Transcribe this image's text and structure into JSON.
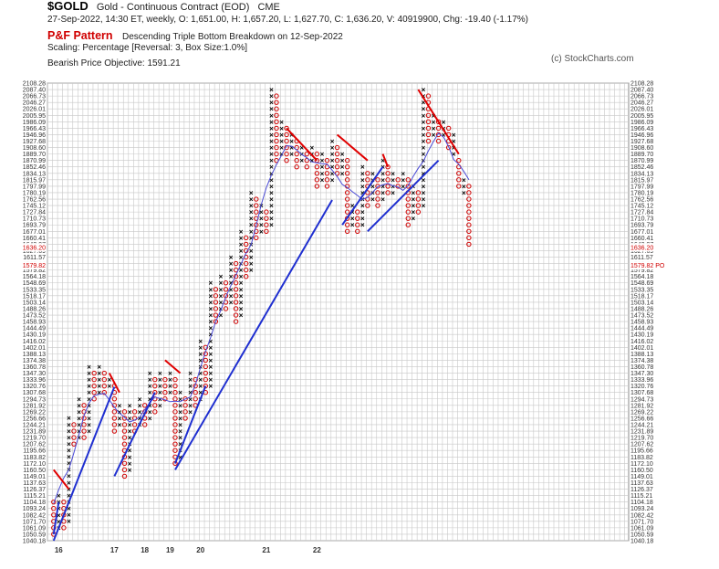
{
  "header": {
    "symbol": "$GOLD",
    "name": "Gold - Continuous Contract (EOD)",
    "exchange": "CME",
    "quote_line": "27-Sep-2022, 14:30 ET, weekly, O: 1,651.00, H: 1,657.20, L: 1,627.70, C: 1,636.20, V: 40919900, Chg: -19.40 (-1.17%)",
    "pattern_label": "P&F Pattern",
    "pattern_desc": "Descending Triple Bottom Breakdown on 12-Sep-2022",
    "scaling": "Scaling: Percentage [Reversal: 3, Box Size:1.0%]",
    "objective": "Bearish Price Objective: 1591.21",
    "credit": "(c) StockCharts.com"
  },
  "chart_data": {
    "type": "point-and-figure",
    "box_size_pct": 1.0,
    "reversal": 3,
    "y_axis": {
      "min": 1040.18,
      "max": 2108.28,
      "scale": "log"
    },
    "y_tick_labels": [
      "2108.28",
      "2087.40",
      "2066.73",
      "2046.27",
      "2026.01",
      "2005.95",
      "1986.09",
      "1966.43",
      "1946.96",
      "1927.68",
      "1908.60",
      "1889.70",
      "1870.99",
      "1852.46",
      "1834.13",
      "1815.97",
      "1797.99",
      "1780.19",
      "1762.56",
      "1745.12",
      "1727.84",
      "1710.73",
      "1693.79",
      "1677.01",
      "1660.41",
      "1643.97",
      "1627.69",
      "1611.57",
      "1595.62",
      "1579.82",
      "1564.18",
      "1548.69",
      "1533.35",
      "1518.17",
      "1503.14",
      "1488.26",
      "1473.52",
      "1458.93",
      "1444.49",
      "1430.19",
      "1416.02",
      "1402.01",
      "1388.13",
      "1374.38",
      "1360.78",
      "1347.30",
      "1333.96",
      "1320.76",
      "1307.68",
      "1294.73",
      "1281.92",
      "1269.22",
      "1256.66",
      "1244.21",
      "1231.89",
      "1219.70",
      "1207.62",
      "1195.66",
      "1183.82",
      "1172.10",
      "1160.50",
      "1149.01",
      "1137.63",
      "1126.37",
      "1115.21",
      "1104.18",
      "1093.24",
      "1082.42",
      "1071.70",
      "1061.09",
      "1050.59",
      "1040.18"
    ],
    "current_price": {
      "label": "1636.20",
      "value": 1636.2,
      "color": "#d00000"
    },
    "price_objective": {
      "label": "1579.82 PO",
      "value": 1591.21,
      "color": "#d00000"
    },
    "x_labels": [
      {
        "label": "16",
        "column": 1
      },
      {
        "label": "17",
        "column": 12
      },
      {
        "label": "18",
        "column": 18
      },
      {
        "label": "19",
        "column": 23
      },
      {
        "label": "20",
        "column": 29
      },
      {
        "label": "21",
        "column": 42
      },
      {
        "label": "22",
        "column": 52
      }
    ],
    "columns": [
      {
        "t": "O",
        "hi": 1104.18,
        "lo": 1050.59
      },
      {
        "t": "X",
        "hi": 1115.21,
        "lo": 1061.09
      },
      {
        "t": "O",
        "hi": 1104.18,
        "lo": 1061.09
      },
      {
        "t": "X",
        "hi": 1257.0,
        "lo": 1071.7
      },
      {
        "t": "O",
        "hi": 1244.21,
        "lo": 1207.62
      },
      {
        "t": "X",
        "hi": 1294.73,
        "lo": 1219.7
      },
      {
        "t": "O",
        "hi": 1281.92,
        "lo": 1219.7
      },
      {
        "t": "X",
        "hi": 1360.78,
        "lo": 1231.89
      },
      {
        "t": "O",
        "hi": 1347.3,
        "lo": 1294.73
      },
      {
        "t": "X",
        "hi": 1360.78,
        "lo": 1307.68
      },
      {
        "t": "O",
        "hi": 1347.3,
        "lo": 1307.68
      },
      {
        "t": "X",
        "hi": 1333.96,
        "lo": 1320.76
      },
      {
        "t": "O",
        "hi": 1320.76,
        "lo": 1231.89
      },
      {
        "t": "X",
        "hi": 1281.92,
        "lo": 1244.21
      },
      {
        "t": "O",
        "hi": 1269.22,
        "lo": 1149.01
      },
      {
        "t": "X",
        "hi": 1281.92,
        "lo": 1160.5
      },
      {
        "t": "O",
        "hi": 1269.22,
        "lo": 1231.89
      },
      {
        "t": "X",
        "hi": 1294.73,
        "lo": 1244.21
      },
      {
        "t": "O",
        "hi": 1281.92,
        "lo": 1244.21
      },
      {
        "t": "X",
        "hi": 1347.3,
        "lo": 1256.66
      },
      {
        "t": "O",
        "hi": 1333.96,
        "lo": 1269.22
      },
      {
        "t": "X",
        "hi": 1347.3,
        "lo": 1281.92
      },
      {
        "t": "O",
        "hi": 1333.96,
        "lo": 1294.73
      },
      {
        "t": "X",
        "hi": 1347.3,
        "lo": 1307.68
      },
      {
        "t": "O",
        "hi": 1333.96,
        "lo": 1172.1
      },
      {
        "t": "X",
        "hi": 1307.68,
        "lo": 1183.82
      },
      {
        "t": "O",
        "hi": 1294.73,
        "lo": 1256.66
      },
      {
        "t": "X",
        "hi": 1347.3,
        "lo": 1269.22
      },
      {
        "t": "O",
        "hi": 1333.96,
        "lo": 1281.92
      },
      {
        "t": "X",
        "hi": 1416.02,
        "lo": 1294.73
      },
      {
        "t": "O",
        "hi": 1402.01,
        "lo": 1307.68
      },
      {
        "t": "X",
        "hi": 1548.69,
        "lo": 1320.76
      },
      {
        "t": "O",
        "hi": 1533.35,
        "lo": 1458.93
      },
      {
        "t": "X",
        "hi": 1564.18,
        "lo": 1473.52
      },
      {
        "t": "O",
        "hi": 1548.69,
        "lo": 1488.26
      },
      {
        "t": "X",
        "hi": 1611.57,
        "lo": 1503.14
      },
      {
        "t": "O",
        "hi": 1595.62,
        "lo": 1458.93
      },
      {
        "t": "X",
        "hi": 1677.01,
        "lo": 1473.52
      },
      {
        "t": "O",
        "hi": 1660.41,
        "lo": 1564.18
      },
      {
        "t": "X",
        "hi": 1780.19,
        "lo": 1579.82
      },
      {
        "t": "O",
        "hi": 1762.56,
        "lo": 1660.41
      },
      {
        "t": "X",
        "hi": 1745.12,
        "lo": 1677.01
      },
      {
        "t": "O",
        "hi": 1727.84,
        "lo": 1677.01
      },
      {
        "t": "X",
        "hi": 2087.4,
        "lo": 1693.79
      },
      {
        "t": "O",
        "hi": 2066.73,
        "lo": 1870.99
      },
      {
        "t": "X",
        "hi": 1986.09,
        "lo": 1889.7
      },
      {
        "t": "O",
        "hi": 1966.43,
        "lo": 1870.99
      },
      {
        "t": "X",
        "hi": 1946.96,
        "lo": 1889.7
      },
      {
        "t": "O",
        "hi": 1927.68,
        "lo": 1852.46
      },
      {
        "t": "X",
        "hi": 1908.6,
        "lo": 1870.99
      },
      {
        "t": "O",
        "hi": 1889.7,
        "lo": 1852.46
      },
      {
        "t": "X",
        "hi": 1908.6,
        "lo": 1870.99
      },
      {
        "t": "O",
        "hi": 1889.7,
        "lo": 1797.99
      },
      {
        "t": "X",
        "hi": 1889.7,
        "lo": 1815.97
      },
      {
        "t": "O",
        "hi": 1870.99,
        "lo": 1797.99
      },
      {
        "t": "X",
        "hi": 1927.68,
        "lo": 1815.97
      },
      {
        "t": "O",
        "hi": 1908.6,
        "lo": 1834.13
      },
      {
        "t": "X",
        "hi": 1889.7,
        "lo": 1834.13
      },
      {
        "t": "O",
        "hi": 1870.99,
        "lo": 1677.01
      },
      {
        "t": "X",
        "hi": 1745.12,
        "lo": 1693.79
      },
      {
        "t": "O",
        "hi": 1727.84,
        "lo": 1677.01
      },
      {
        "t": "X",
        "hi": 1852.46,
        "lo": 1693.79
      },
      {
        "t": "O",
        "hi": 1834.13,
        "lo": 1745.12
      },
      {
        "t": "X",
        "hi": 1834.13,
        "lo": 1762.56
      },
      {
        "t": "O",
        "hi": 1815.97,
        "lo": 1745.12
      },
      {
        "t": "X",
        "hi": 1870.99,
        "lo": 1762.56
      },
      {
        "t": "O",
        "hi": 1852.46,
        "lo": 1780.19
      },
      {
        "t": "X",
        "hi": 1834.13,
        "lo": 1780.19
      },
      {
        "t": "O",
        "hi": 1815.97,
        "lo": 1797.99
      },
      {
        "t": "X",
        "hi": 1834.13,
        "lo": 1797.99
      },
      {
        "t": "O",
        "hi": 1815.97,
        "lo": 1693.79
      },
      {
        "t": "X",
        "hi": 1797.99,
        "lo": 1710.73
      },
      {
        "t": "O",
        "hi": 1780.19,
        "lo": 1727.84
      },
      {
        "t": "X",
        "hi": 2087.4,
        "lo": 1745.12
      },
      {
        "t": "O",
        "hi": 2066.73,
        "lo": 1927.68
      },
      {
        "t": "X",
        "hi": 2005.95,
        "lo": 1946.96
      },
      {
        "t": "O",
        "hi": 1986.09,
        "lo": 1927.68
      },
      {
        "t": "X",
        "hi": 1986.09,
        "lo": 1946.96
      },
      {
        "t": "O",
        "hi": 1966.43,
        "lo": 1908.6
      },
      {
        "t": "X",
        "hi": 1946.96,
        "lo": 1889.7
      },
      {
        "t": "O",
        "hi": 1870.99,
        "lo": 1797.99
      },
      {
        "t": "X",
        "hi": 1815.97,
        "lo": 1780.19
      },
      {
        "t": "O",
        "hi": 1797.99,
        "lo": 1643.97
      }
    ],
    "trendlines": [
      {
        "kind": "support",
        "color": "#1f2fd0",
        "from": {
          "column": 0,
          "price": 1050.59
        },
        "to": {
          "column": 1,
          "price": 1104.18
        }
      },
      {
        "kind": "support",
        "color": "#1f2fd0",
        "from": {
          "column": 0,
          "price": 1040.18
        },
        "to": {
          "column": 12,
          "price": 1319.0
        }
      },
      {
        "kind": "support",
        "color": "#1f2fd0",
        "from": {
          "column": 12,
          "price": 1149.01
        },
        "to": {
          "column": 20,
          "price": 1307.68
        }
      },
      {
        "kind": "support",
        "color": "#1f2fd0",
        "from": {
          "column": 24,
          "price": 1172.1
        },
        "to": {
          "column": 30,
          "price": 1320.76
        }
      },
      {
        "kind": "support",
        "color": "#1f2fd0",
        "from": {
          "column": 24,
          "price": 1160.5
        },
        "to": {
          "column": 55,
          "price": 1760.0
        }
      },
      {
        "kind": "support",
        "color": "#1f2fd0",
        "from": {
          "column": 57,
          "price": 1693.79
        },
        "to": {
          "column": 65,
          "price": 1852.46
        }
      },
      {
        "kind": "support",
        "color": "#1f2fd0",
        "from": {
          "column": 62,
          "price": 1677.01
        },
        "to": {
          "column": 76,
          "price": 1870.99
        }
      },
      {
        "kind": "resistance",
        "color": "#e00000",
        "from": {
          "column": 0,
          "price": 1160.5
        },
        "to": {
          "column": 3,
          "price": 1126.37
        }
      },
      {
        "kind": "resistance",
        "color": "#e00000",
        "from": {
          "column": 11,
          "price": 1347.3
        },
        "to": {
          "column": 13,
          "price": 1307.68
        }
      },
      {
        "kind": "resistance",
        "color": "#e00000",
        "from": {
          "column": 22,
          "price": 1374.38
        },
        "to": {
          "column": 25,
          "price": 1347.3
        }
      },
      {
        "kind": "resistance",
        "color": "#e00000",
        "from": {
          "column": 46,
          "price": 1966.43
        },
        "to": {
          "column": 52,
          "price": 1870.99
        }
      },
      {
        "kind": "resistance",
        "color": "#e00000",
        "from": {
          "column": 56,
          "price": 1946.96
        },
        "to": {
          "column": 62,
          "price": 1870.99
        }
      },
      {
        "kind": "resistance",
        "color": "#e00000",
        "from": {
          "column": 65,
          "price": 1889.7
        },
        "to": {
          "column": 66,
          "price": 1852.46
        }
      },
      {
        "kind": "resistance",
        "color": "#e00000",
        "from": {
          "column": 72,
          "price": 2087.4
        },
        "to": {
          "column": 80,
          "price": 1889.7
        }
      }
    ]
  },
  "style": {
    "x_color": "#000000",
    "o_color": "#d00000",
    "grid_color": "#c8c8c8",
    "moving_average_color": "#4a4ad6"
  }
}
